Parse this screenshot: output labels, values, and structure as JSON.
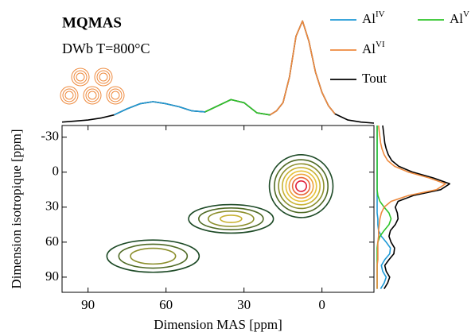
{
  "chart_data": {
    "type": "mqmas",
    "title": "MQMAS",
    "subtitle": "DWb T=800°C",
    "x_label": "Dimension MAS [ppm]",
    "y_label": "Dimension isotropique [ppm]",
    "xlim": [
      100,
      -20
    ],
    "ylim": [
      -40,
      103
    ],
    "xticks": [
      90,
      60,
      30,
      0
    ],
    "yticks": [
      -30,
      0,
      30,
      60,
      90
    ],
    "contour_levels": [
      0.05,
      0.12,
      0.22,
      0.35,
      0.5,
      0.65,
      0.8,
      0.92
    ],
    "contour_colors": [
      "#1d4a26",
      "#4f6a25",
      "#8c8f2c",
      "#c8b232",
      "#e6c23a",
      "#eea33a",
      "#e8683a",
      "#e0203a"
    ],
    "peaks": [
      {
        "x": 8,
        "y": 12,
        "amplitude": 1.0,
        "sigma_x": 5,
        "sigma_y": 11
      },
      {
        "x": 35,
        "y": 40,
        "amplitude": 0.4,
        "sigma_x": 8,
        "sigma_y": 6
      },
      {
        "x": 65,
        "y": 72,
        "amplitude": 0.35,
        "sigma_x": 9,
        "sigma_y": 7
      }
    ],
    "projection_top": {
      "ylim": [
        0,
        1.05
      ],
      "x": [
        100,
        95,
        90,
        85,
        80,
        75,
        70,
        65,
        60,
        55,
        50,
        45,
        40,
        35,
        30,
        25,
        20,
        17.5,
        15,
        12.5,
        10,
        7.5,
        5,
        2.5,
        0,
        -2.5,
        -5,
        -10,
        -15,
        -20
      ],
      "series": [
        {
          "name": "Tout",
          "color": "#000000",
          "values": [
            0.01,
            0.02,
            0.03,
            0.05,
            0.08,
            0.14,
            0.19,
            0.21,
            0.19,
            0.16,
            0.12,
            0.11,
            0.17,
            0.23,
            0.2,
            0.1,
            0.08,
            0.12,
            0.2,
            0.45,
            0.85,
            1.0,
            0.8,
            0.5,
            0.3,
            0.17,
            0.09,
            0.03,
            0.01,
            0
          ]
        },
        {
          "name": "Al",
          "sup": "IV",
          "color": "#1f9ad6",
          "values": [
            null,
            null,
            null,
            null,
            0.08,
            0.14,
            0.19,
            0.21,
            0.19,
            0.16,
            0.12,
            0.11,
            null,
            null,
            null,
            null,
            null,
            null,
            null,
            null,
            null,
            null,
            null,
            null,
            null,
            null,
            null,
            null,
            null,
            null
          ]
        },
        {
          "name": "Al",
          "sup": "V",
          "color": "#2fc42a",
          "values": [
            null,
            null,
            null,
            null,
            null,
            null,
            null,
            null,
            null,
            null,
            null,
            0.11,
            0.17,
            0.23,
            0.2,
            0.1,
            0.08,
            null,
            null,
            null,
            null,
            null,
            null,
            null,
            null,
            null,
            null,
            null,
            null,
            null
          ]
        },
        {
          "name": "Al",
          "sup": "VI",
          "color": "#ee8a3e",
          "values": [
            null,
            null,
            null,
            null,
            null,
            null,
            null,
            null,
            null,
            null,
            null,
            null,
            null,
            null,
            null,
            null,
            0.08,
            0.12,
            0.2,
            0.45,
            0.85,
            1.0,
            0.8,
            0.5,
            0.3,
            0.17,
            0.09,
            null,
            null,
            null
          ]
        }
      ]
    },
    "projection_right": {
      "xlim": [
        0,
        1.3
      ],
      "y": [
        -40,
        -35,
        -30,
        -25,
        -20,
        -15,
        -10,
        -5,
        0,
        5,
        10,
        15,
        20,
        25,
        30,
        35,
        40,
        45,
        50,
        55,
        60,
        65,
        70,
        75,
        80,
        85,
        90,
        95,
        100
      ],
      "series": [
        {
          "color": "#000000",
          "values": [
            0.08,
            0.09,
            0.1,
            0.11,
            0.13,
            0.16,
            0.21,
            0.31,
            0.51,
            0.81,
            1.04,
            0.91,
            0.52,
            0.3,
            0.26,
            0.29,
            0.3,
            0.26,
            0.19,
            0.17,
            0.2,
            0.25,
            0.24,
            0.17,
            0.11,
            0.13,
            0.18,
            0.15,
            0.1
          ]
        },
        {
          "color": "#1f9ad6",
          "values": [
            0,
            0,
            0,
            0,
            0,
            0,
            0,
            0,
            0,
            0,
            0,
            0,
            0,
            0,
            0,
            0,
            0.01,
            0.01,
            0.02,
            0.06,
            0.13,
            0.19,
            0.18,
            0.11,
            0.06,
            0.08,
            0.13,
            0.1,
            0.05
          ]
        },
        {
          "color": "#2fc42a",
          "values": [
            0,
            0,
            0,
            0,
            0,
            0,
            0,
            0,
            0,
            0,
            0,
            0,
            0.01,
            0.04,
            0.1,
            0.17,
            0.2,
            0.17,
            0.1,
            0.04,
            0.01,
            0,
            0,
            0,
            0,
            0,
            0,
            0,
            0
          ]
        },
        {
          "color": "#ee8a3e",
          "values": [
            0.02,
            0.03,
            0.04,
            0.05,
            0.07,
            0.1,
            0.15,
            0.25,
            0.45,
            0.75,
            0.98,
            0.85,
            0.45,
            0.2,
            0.1,
            0.06,
            0.04,
            0.03,
            0.02,
            0.02,
            0.01,
            0.01,
            0.01,
            0.01,
            0,
            0,
            0,
            0,
            0
          ]
        }
      ]
    }
  }
}
